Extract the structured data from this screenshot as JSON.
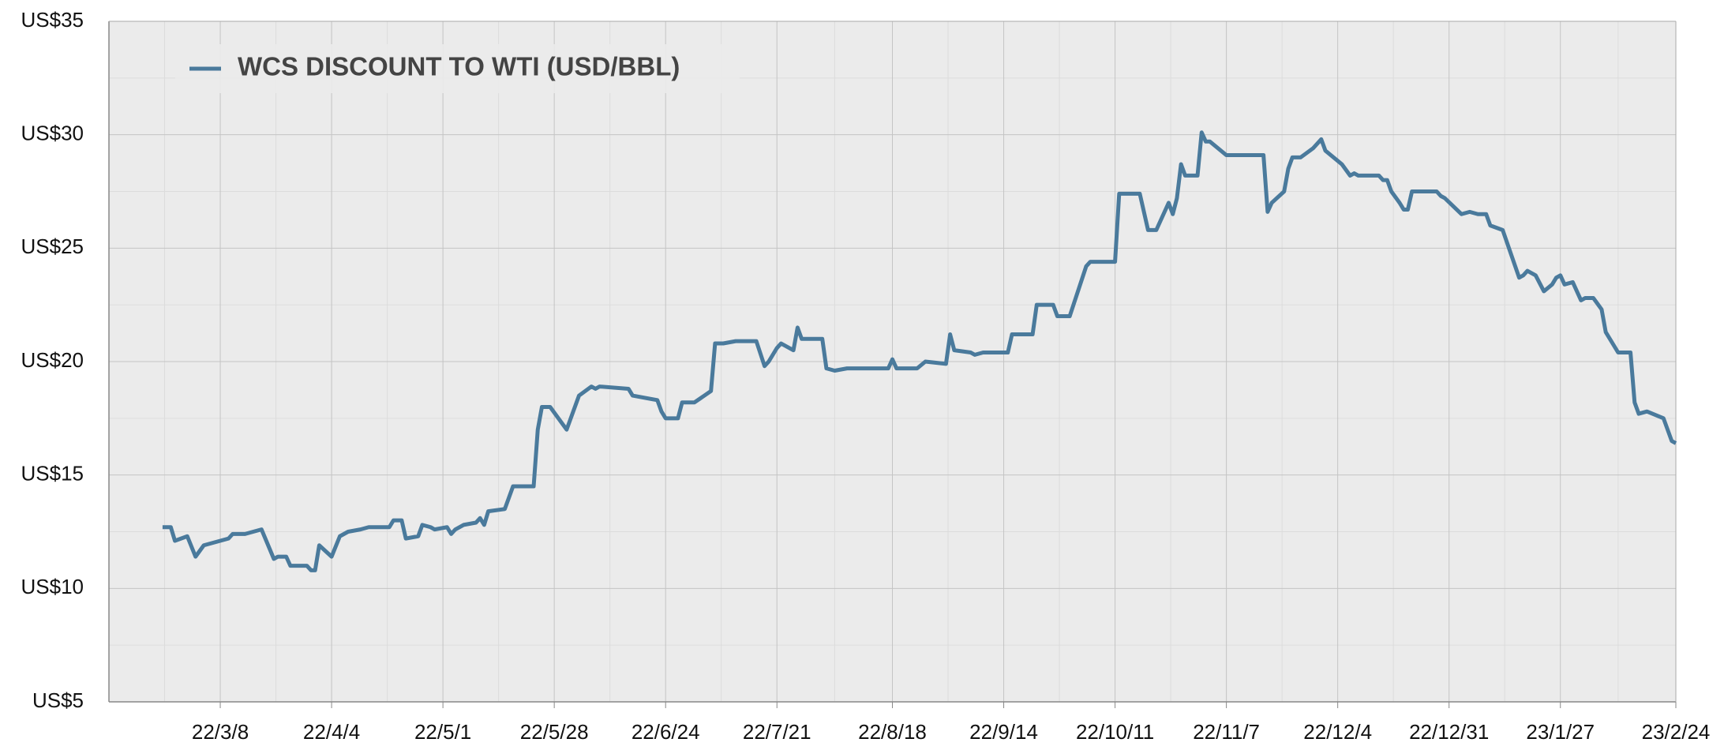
{
  "chart_data": {
    "type": "line",
    "x": [
      "22/2/22",
      "22/2/24",
      "22/2/25",
      "22/2/28",
      "22/3/2",
      "22/3/4",
      "22/3/10",
      "22/3/11",
      "22/3/14",
      "22/3/16",
      "22/3/18",
      "22/3/21",
      "22/3/22",
      "22/3/24",
      "22/3/25",
      "22/3/29",
      "22/3/30",
      "22/3/31",
      "22/4/1",
      "22/4/4",
      "22/4/6",
      "22/4/8",
      "22/4/11",
      "22/4/13",
      "22/4/18",
      "22/4/19",
      "22/4/21",
      "22/4/22",
      "22/4/25",
      "22/4/26",
      "22/4/28",
      "22/4/29",
      "22/5/2",
      "22/5/3",
      "22/5/4",
      "22/5/6",
      "22/5/9",
      "22/5/10",
      "22/5/11",
      "22/5/12",
      "22/5/16",
      "22/5/18",
      "22/5/23",
      "22/5/24",
      "22/5/25",
      "22/5/27",
      "22/5/31",
      "22/6/3",
      "22/6/6",
      "22/6/7",
      "22/6/8",
      "22/6/15",
      "22/6/16",
      "22/6/22",
      "22/6/23",
      "22/6/24",
      "22/6/27",
      "22/6/28",
      "22/7/1",
      "22/7/5",
      "22/7/6",
      "22/7/8",
      "22/7/11",
      "22/7/16",
      "22/7/18",
      "22/7/19",
      "22/7/21",
      "22/7/22",
      "22/7/25",
      "22/7/26",
      "22/7/27",
      "22/8/1",
      "22/8/2",
      "22/8/4",
      "22/8/7",
      "22/8/17",
      "22/8/18",
      "22/8/19",
      "22/8/24",
      "22/8/26",
      "22/8/31",
      "22/9/1",
      "22/9/2",
      "22/9/6",
      "22/9/7",
      "22/9/9",
      "22/9/15",
      "22/9/16",
      "22/9/21",
      "22/9/22",
      "22/9/26",
      "22/9/27",
      "22/9/30",
      "22/10/4",
      "22/10/5",
      "22/10/11",
      "22/10/12",
      "22/10/17",
      "22/10/19",
      "22/10/21",
      "22/10/24",
      "22/10/25",
      "22/10/26",
      "22/10/27",
      "22/10/28",
      "22/10/31",
      "22/11/1",
      "22/11/2",
      "22/11/3",
      "22/11/7",
      "22/11/11",
      "22/11/16",
      "22/11/17",
      "22/11/18",
      "22/11/21",
      "22/11/22",
      "22/11/23",
      "22/11/25",
      "22/11/28",
      "22/11/30",
      "22/12/1",
      "22/12/5",
      "22/12/7",
      "22/12/8",
      "22/12/9",
      "22/12/14",
      "22/12/15",
      "22/12/16",
      "22/12/17",
      "22/12/19",
      "22/12/20",
      "22/12/21",
      "22/12/22",
      "22/12/28",
      "22/12/29",
      "22/12/30",
      "23/1/3",
      "23/1/5",
      "23/1/7",
      "23/1/9",
      "23/1/10",
      "23/1/13",
      "23/1/17",
      "23/1/18",
      "23/1/19",
      "23/1/21",
      "23/1/23",
      "23/1/25",
      "23/1/26",
      "23/1/27",
      "23/1/28",
      "23/1/30",
      "23/2/1",
      "23/2/2",
      "23/2/4",
      "23/2/6",
      "23/2/7",
      "23/2/9",
      "23/2/10",
      "23/2/13",
      "23/2/14",
      "23/2/15",
      "23/2/17",
      "23/2/21",
      "23/2/23",
      "23/2/24"
    ],
    "series": [
      {
        "name": "WCS DISCOUNT TO WTI (USD/BBL)",
        "color": "#4a7a9c",
        "values": [
          12.7,
          12.7,
          12.1,
          12.3,
          11.4,
          11.9,
          12.2,
          12.4,
          12.4,
          12.5,
          12.6,
          11.3,
          11.4,
          11.4,
          11.0,
          11.0,
          10.8,
          10.8,
          11.9,
          11.4,
          12.3,
          12.5,
          12.6,
          12.7,
          12.7,
          13.0,
          13.0,
          12.2,
          12.3,
          12.8,
          12.7,
          12.6,
          12.7,
          12.4,
          12.6,
          12.8,
          12.9,
          13.1,
          12.8,
          13.4,
          13.5,
          14.5,
          14.5,
          17.0,
          18.0,
          18.0,
          17.0,
          18.5,
          18.9,
          18.8,
          18.9,
          18.8,
          18.5,
          18.3,
          17.8,
          17.5,
          17.5,
          18.2,
          18.2,
          18.7,
          20.8,
          20.8,
          20.9,
          20.9,
          19.8,
          20.0,
          20.6,
          20.8,
          20.5,
          21.5,
          21.0,
          21.0,
          19.7,
          19.6,
          19.7,
          19.7,
          20.1,
          19.7,
          19.7,
          20.0,
          19.9,
          21.2,
          20.5,
          20.4,
          20.3,
          20.4,
          20.4,
          21.2,
          21.2,
          22.5,
          22.5,
          22.0,
          22.0,
          24.2,
          24.4,
          24.4,
          27.4,
          27.4,
          25.8,
          25.8,
          27.0,
          26.5,
          27.2,
          28.7,
          28.2,
          28.2,
          30.1,
          29.7,
          29.7,
          29.1,
          29.1,
          29.1,
          26.6,
          27.0,
          27.5,
          28.5,
          29.0,
          29.0,
          29.4,
          29.8,
          29.3,
          28.7,
          28.2,
          28.3,
          28.2,
          28.2,
          28.0,
          28.0,
          27.5,
          27.0,
          26.7,
          26.7,
          27.5,
          27.5,
          27.3,
          27.2,
          26.5,
          26.6,
          26.5,
          26.5,
          26.0,
          25.8,
          23.7,
          23.8,
          24.0,
          23.8,
          23.1,
          23.4,
          23.7,
          23.8,
          23.4,
          23.5,
          22.7,
          22.8,
          22.8,
          22.3,
          21.3,
          20.7,
          20.4,
          20.4,
          18.2,
          17.7,
          17.8,
          17.5,
          16.5,
          16.4
        ]
      }
    ],
    "xlim": [
      "22/2/9",
      "23/2/24"
    ],
    "xticks": [
      "22/3/8",
      "22/4/4",
      "22/5/1",
      "22/5/28",
      "22/6/24",
      "22/7/21",
      "22/8/18",
      "22/9/14",
      "22/10/11",
      "22/11/7",
      "22/12/4",
      "22/12/31",
      "23/1/27",
      "23/2/24"
    ],
    "ylim": [
      5,
      35
    ],
    "yticks": [
      {
        "value": 5,
        "label": "US$5"
      },
      {
        "value": 10,
        "label": "US$10"
      },
      {
        "value": 15,
        "label": "US$15"
      },
      {
        "value": 20,
        "label": "US$20"
      },
      {
        "value": 25,
        "label": "US$25"
      },
      {
        "value": 30,
        "label": "US$30"
      },
      {
        "value": 35,
        "label": "US$35"
      }
    ],
    "grid": true,
    "legend": "upper-left"
  }
}
